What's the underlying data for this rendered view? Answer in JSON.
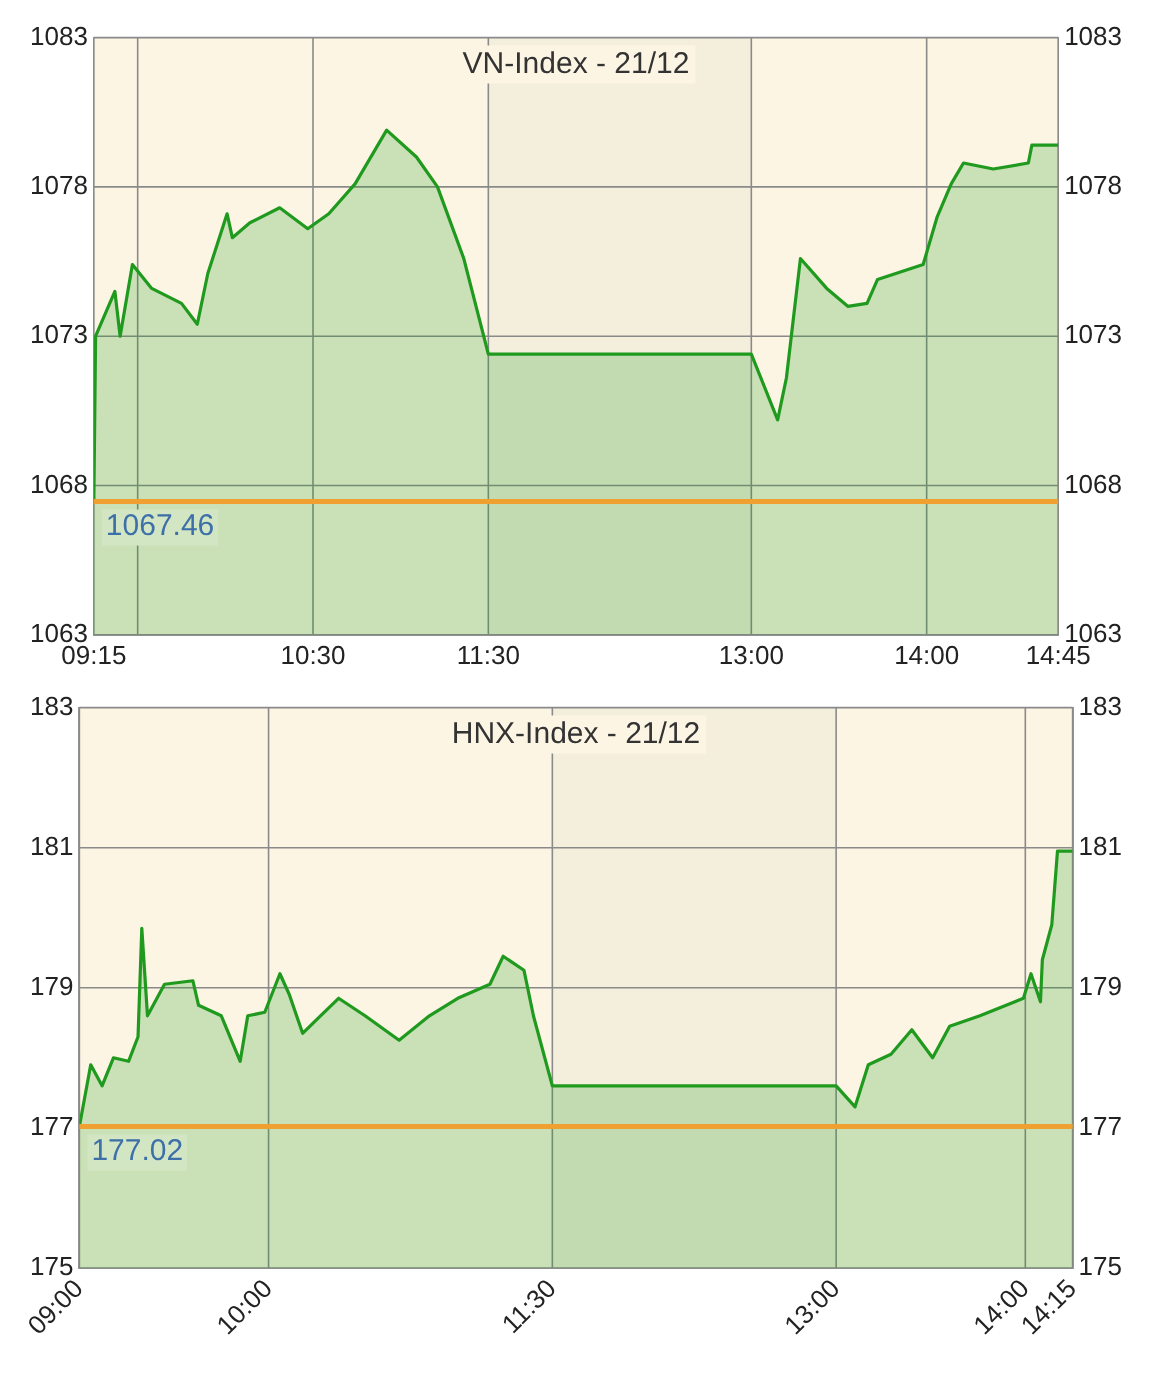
{
  "chart_data": [
    {
      "type": "area",
      "title": "VN-Index - 21/12",
      "xlim": [
        9.25,
        14.75
      ],
      "xticks": [
        {
          "value": 9.25,
          "label": "09:15"
        },
        {
          "value": 9.5,
          "label": null
        },
        {
          "value": 10.5,
          "label": "10:30"
        },
        {
          "value": 11.5,
          "label": "11:30"
        },
        {
          "value": 13,
          "label": "13:00"
        },
        {
          "value": 14,
          "label": "14:00"
        },
        {
          "value": 14.75,
          "label": "14:45"
        }
      ],
      "ylim": [
        1063,
        1083
      ],
      "yticks": [
        1063,
        1068,
        1073,
        1078,
        1083
      ],
      "y2lim": [
        1063,
        1083
      ],
      "y2ticks": [
        1063,
        1068,
        1073,
        1078,
        1083
      ],
      "grid": true,
      "legend": false,
      "series": [
        {
          "color": "#1f9a1f",
          "x": [
            9.25,
            9.26,
            9.37,
            9.4,
            9.47,
            9.58,
            9.75,
            9.84,
            9.9,
            10.01,
            10.04,
            10.14,
            10.31,
            10.47,
            10.59,
            10.74,
            10.92,
            11.09,
            11.21,
            11.36,
            11.5,
            13.0,
            13.15,
            13.2,
            13.28,
            13.43,
            13.55,
            13.66,
            13.72,
            13.98,
            14.06,
            14.14,
            14.21,
            14.38,
            14.58,
            14.6,
            14.75
          ],
          "values": [
            1067.46,
            1073.0,
            1074.5,
            1073.0,
            1075.4,
            1074.6,
            1074.1,
            1073.4,
            1075.1,
            1077.1,
            1076.3,
            1076.8,
            1077.3,
            1076.6,
            1077.1,
            1078.1,
            1079.9,
            1079.0,
            1078.0,
            1075.6,
            1072.4,
            1072.4,
            1070.2,
            1071.6,
            1075.6,
            1074.6,
            1074.0,
            1074.1,
            1074.9,
            1075.4,
            1077.0,
            1078.1,
            1078.8,
            1078.6,
            1078.8,
            1079.4,
            1079.4
          ]
        }
      ],
      "ref_lines": [
        {
          "axis": "y",
          "value": 1067.46,
          "label": "1067.46",
          "color": "#f0a030"
        }
      ],
      "bands": [
        {
          "axis": "x",
          "from": 11.5,
          "to": 13,
          "color": "#f4efdc"
        }
      ]
    },
    {
      "type": "area",
      "title": "HNX-Index - 21/12",
      "xlim": [
        9,
        14.25
      ],
      "xticks": [
        {
          "value": 9,
          "label": "09:00"
        },
        {
          "value": 10,
          "label": "10:00"
        },
        {
          "value": 11.5,
          "label": "11:30"
        },
        {
          "value": 13,
          "label": "13:00"
        },
        {
          "value": 14,
          "label": "14:00"
        },
        {
          "value": 14.25,
          "label": "14:15"
        }
      ],
      "ylim": [
        175,
        183
      ],
      "yticks": [
        175,
        177,
        179,
        181,
        183
      ],
      "y2lim": [
        175,
        183
      ],
      "y2ticks": [
        175,
        177,
        179,
        181,
        183
      ],
      "grid": true,
      "legend": false,
      "series": [
        {
          "color": "#1f9a1f",
          "x": [
            9.0,
            9.06,
            9.12,
            9.18,
            9.26,
            9.31,
            9.33,
            9.36,
            9.45,
            9.6,
            9.63,
            9.75,
            9.85,
            9.89,
            9.98,
            10.06,
            10.11,
            10.18,
            10.37,
            10.51,
            10.69,
            10.85,
            11.0,
            11.17,
            11.24,
            11.35,
            11.4,
            11.5,
            13.0,
            13.1,
            13.17,
            13.29,
            13.4,
            13.51,
            13.6,
            13.76,
            13.99,
            14.03,
            14.08,
            14.09,
            14.14,
            14.17,
            14.25
          ],
          "values": [
            177.02,
            177.9,
            177.6,
            178.0,
            177.95,
            178.3,
            179.85,
            178.6,
            179.05,
            179.1,
            178.75,
            178.6,
            177.95,
            178.6,
            178.65,
            179.2,
            178.9,
            178.35,
            178.85,
            178.6,
            178.25,
            178.6,
            178.85,
            179.05,
            179.45,
            179.25,
            178.6,
            177.6,
            177.6,
            177.3,
            177.9,
            178.05,
            178.4,
            178.0,
            178.45,
            178.6,
            178.85,
            179.2,
            178.8,
            179.4,
            179.9,
            180.95,
            180.95
          ]
        }
      ],
      "ref_lines": [
        {
          "axis": "y",
          "value": 177.02,
          "label": "177.02",
          "color": "#f0a030"
        }
      ],
      "bands": [
        {
          "axis": "x",
          "from": 11.5,
          "to": 13,
          "color": "#f4efdc"
        }
      ]
    }
  ]
}
